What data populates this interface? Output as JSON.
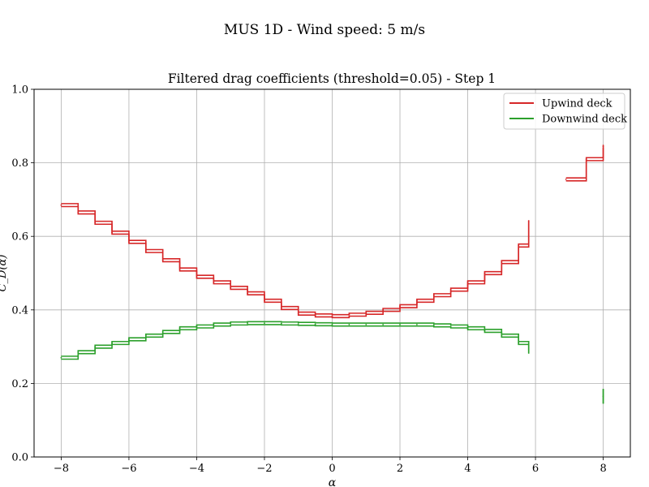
{
  "figure": {
    "suptitle": "MUS 1D - Wind speed: 5 m/s"
  },
  "chart_data": {
    "type": "line",
    "title": "Filtered drag coefficients (threshold=0.05) - Step 1",
    "xlabel": "α",
    "ylabel": "C_D(α)",
    "xlim": [
      -8.8,
      8.8
    ],
    "ylim": [
      0.0,
      1.0
    ],
    "xticks": [
      -8,
      -6,
      -4,
      -2,
      0,
      2,
      4,
      6,
      8
    ],
    "xtick_labels": [
      "−8",
      "−6",
      "−4",
      "−2",
      "0",
      "2",
      "4",
      "6",
      "8"
    ],
    "yticks": [
      0.0,
      0.2,
      0.4,
      0.6,
      0.8,
      1.0
    ],
    "ytick_labels": [
      "0.0",
      "0.2",
      "0.4",
      "0.6",
      "0.8",
      "1.0"
    ],
    "grid": true,
    "legend": "top-right",
    "colors": {
      "upwind": "#d62728",
      "downwind": "#2ca02c",
      "grid": "#b0b0b0"
    },
    "series": [
      {
        "name": "Upwind deck",
        "color": "#d62728",
        "x": [
          -8,
          -7.5,
          -7,
          -6.5,
          -6,
          -5.5,
          -5,
          -4.5,
          -4,
          -3.5,
          -3,
          -2.5,
          -2,
          -1.5,
          -1,
          -0.5,
          0,
          0.5,
          1,
          1.5,
          2,
          2.5,
          3,
          3.5,
          4,
          4.5,
          5,
          5.5,
          5.8,
          6.9,
          7.5,
          8
        ],
        "values": [
          0.685,
          0.665,
          0.637,
          0.61,
          0.585,
          0.56,
          0.535,
          0.51,
          0.49,
          0.475,
          0.46,
          0.445,
          0.425,
          0.405,
          0.39,
          0.385,
          0.383,
          0.387,
          0.392,
          0.4,
          0.41,
          0.425,
          0.44,
          0.455,
          0.475,
          0.5,
          0.53,
          0.575,
          0.64,
          0.755,
          0.81,
          0.845
        ]
      },
      {
        "name": "Downwind deck",
        "color": "#2ca02c",
        "x": [
          -8,
          -7.5,
          -7,
          -6.5,
          -6,
          -5.5,
          -5,
          -4.5,
          -4,
          -3.5,
          -3,
          -2.5,
          -2,
          -1.5,
          -1,
          -0.5,
          0,
          0.5,
          1,
          1.5,
          2,
          2.5,
          3,
          3.5,
          4,
          4.5,
          5,
          5.5,
          5.8,
          8
        ],
        "values": [
          0.27,
          0.285,
          0.3,
          0.31,
          0.32,
          0.33,
          0.34,
          0.35,
          0.355,
          0.36,
          0.363,
          0.364,
          0.364,
          0.363,
          0.362,
          0.361,
          0.36,
          0.36,
          0.36,
          0.36,
          0.36,
          0.36,
          0.358,
          0.355,
          0.35,
          0.343,
          0.33,
          0.31,
          0.285,
          0.165
        ]
      }
    ]
  }
}
